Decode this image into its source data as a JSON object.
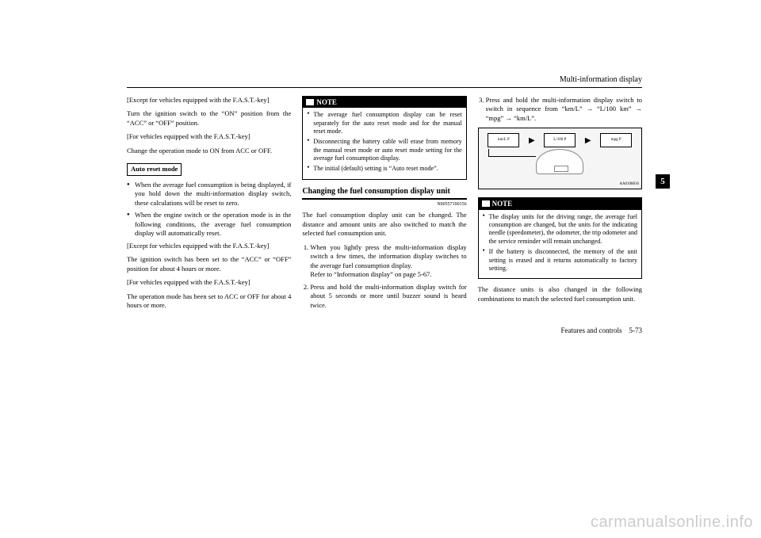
{
  "header": {
    "title": "Multi-information display"
  },
  "sideTab": "5",
  "footer": {
    "section": "Features and controls",
    "page": "5-73"
  },
  "watermark": "carmanualsonline.info",
  "col1": {
    "p1": "[Except for vehicles equipped with the F.A.S.T.-key]",
    "p2": "Turn the ignition switch to the “ON” position from the “ACC” or “OFF” position.",
    "p3": "[For vehicles equipped with the F.A.S.T.-key]",
    "p4": "Change the operation mode to ON from ACC or OFF.",
    "box": "Auto reset mode",
    "b1": "When the average fuel consumption is being displayed, if you hold down the multi-information display switch, these calculations will be reset to zero.",
    "b2": "When the engine switch or the operation mode is in the following conditions, the average fuel consumption display will automatically reset.",
    "p5": "[Except for vehicles equipped with the F.A.S.T.-key]",
    "p6": "The ignition switch has been set to the “ACC” or “OFF” position for about 4 hours or more.",
    "p7": "[For vehicles equipped with the F.A.S.T.-key]",
    "p8": "The operation mode has been set to ACC or OFF for about 4 hours or more."
  },
  "col2": {
    "noteTitle": "NOTE",
    "n1": "The average fuel consumption display can be reset separately for the auto reset mode and for the manual reset mode.",
    "n2": "Disconnecting the battery cable will erase from memory the manual reset mode or auto reset mode setting for the average fuel consumption display.",
    "n3": "The initial (default) setting is “Auto reset mode”.",
    "heading": "Changing the fuel consumption display unit",
    "code": "N00557100156",
    "p1": "The fuel consumption display unit can be changed. The distance and amount units are also switched to match the selected fuel consumption unit.",
    "ol1": "When you lightly press the multi-information display switch a few times, the information display switches to the average fuel consumption display.",
    "ol1b": "Refer to “Information display” on page 5-67.",
    "ol2": "Press and hold the multi-information display switch for about 5 seconds or more until buzzer sound is heard twice."
  },
  "col3": {
    "ol3": "Press and hold the multi-information display switch to switch in sequence from “km/L” → “L/100 km” → “mpg” → “km/L”.",
    "figItems": [
      "km/L  P",
      "L/100  P",
      "mpg  P"
    ],
    "figCode": "AA0108816",
    "noteTitle": "NOTE",
    "n1": "The display units for the driving range, the average fuel consumption are changed, but the units for the indicating needle (speedometer), the odometer, the trip odometer and the service reminder will remain unchanged.",
    "n2": "If the battery is disconnected, the memory of the unit setting is erased and it returns automatically to factory setting.",
    "p1": "The distance units is also changed in the following combinations to match the selected fuel consumption unit."
  }
}
